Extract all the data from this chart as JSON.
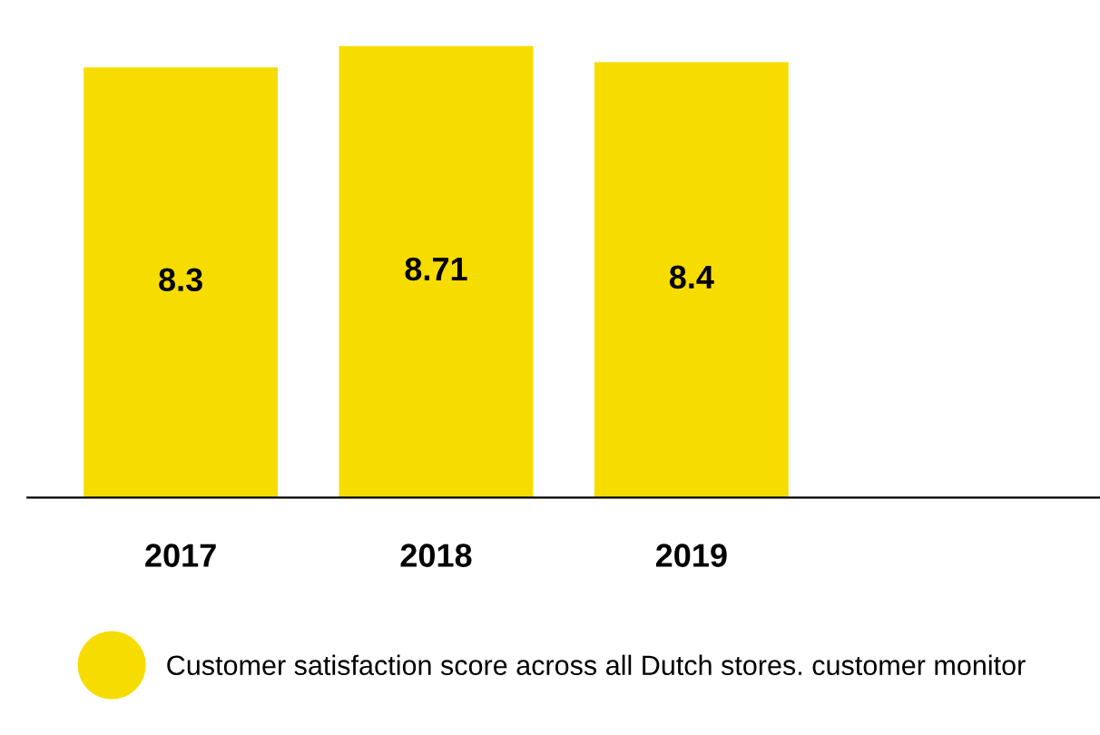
{
  "chart_data": {
    "type": "bar",
    "categories": [
      "2017",
      "2018",
      "2019",
      null
    ],
    "series": [
      {
        "name": "Customer satisfaction score across all Dutch stores. customer monitor",
        "color": "#f7dc00",
        "values": [
          8.3,
          8.71,
          8.4,
          null
        ]
      }
    ],
    "data_labels": true,
    "legend": "bottom",
    "grid": false
  }
}
